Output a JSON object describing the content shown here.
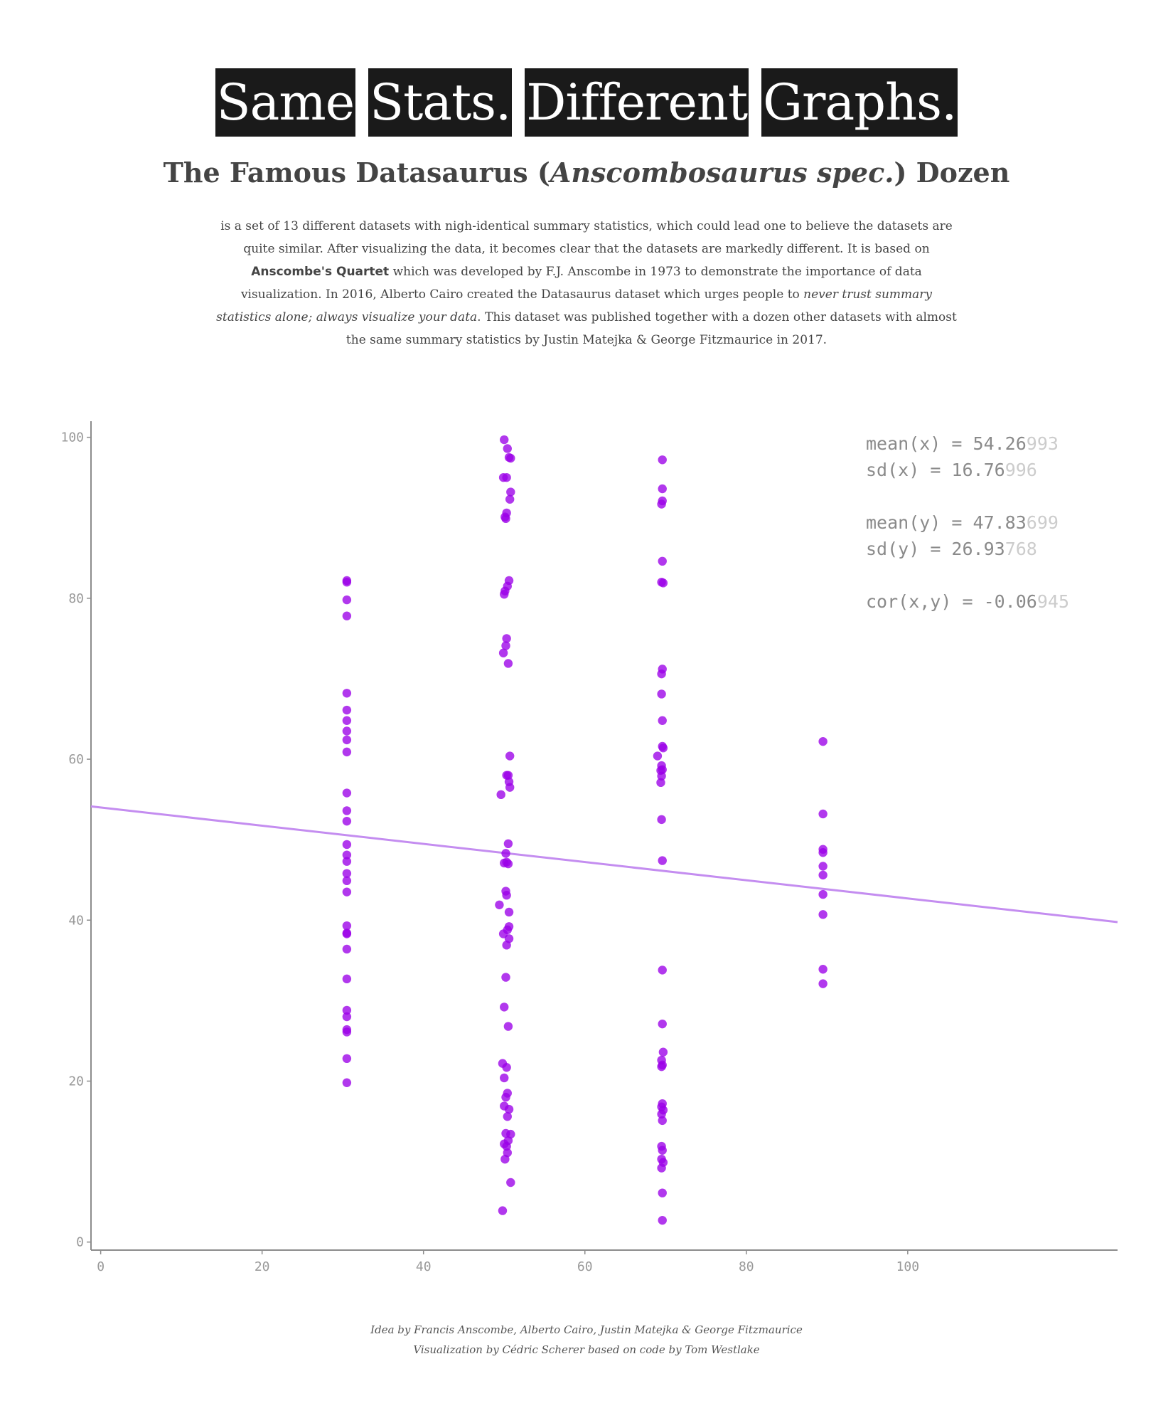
{
  "title": {
    "words": [
      "Same",
      "Stats.",
      "Different",
      "Graphs."
    ]
  },
  "subtitle": {
    "prefix": "The Famous Datasaurus (",
    "emph": "Anscombosaurus spec.",
    "suffix": ") Dozen"
  },
  "description": {
    "p1": "is a set of 13 different datasets with nigh-identical summary statistics, which could lead one to believe the datasets are quite similar. After visualizing the data, it becomes clear that the datasets are markedly different. It is based on ",
    "bold": "Anscombe's Quartet",
    "p2": " which was developed by F.J. Anscombe in 1973 to demonstrate the importance of data visualization. In 2016, Alberto Cairo created the Datasaurus dataset which urges people to ",
    "italic": "never trust summary statistics alone; always visualize your data",
    "p3": ". This dataset was published together with a dozen other datasets with almost the same summary statistics by Justin Matejka & George Fitzmaurice in 2017."
  },
  "stats": [
    {
      "label": "mean(x)  ",
      "eq": " = ",
      "main": "54.26",
      "faint": "993"
    },
    {
      "label": "sd(x)    ",
      "eq": " = ",
      "main": "16.76",
      "faint": "996"
    },
    {
      "label": "mean(y)  ",
      "eq": " = ",
      "main": "47.83",
      "faint": "699"
    },
    {
      "label": "sd(y)    ",
      "eq": " = ",
      "main": "26.93",
      "faint": "768"
    },
    {
      "label": "cor(x,y)",
      "eq": " = ",
      "main": "-0.06",
      "faint": "945"
    }
  ],
  "chart_data": {
    "type": "scatter",
    "xlim": [
      -1.2,
      126
    ],
    "ylim": [
      -1,
      102
    ],
    "xticks": [
      0,
      20,
      40,
      60,
      80,
      100
    ],
    "yticks": [
      0,
      20,
      40,
      60,
      80,
      100
    ],
    "grid": false,
    "point_color": "#9b00e8",
    "line_color": "#c48df0",
    "trend_line": {
      "intercept": 54.0,
      "slope": -0.113
    },
    "points": [
      [
        30.5,
        82.2
      ],
      [
        30.5,
        82.0
      ],
      [
        30.5,
        79.8
      ],
      [
        30.5,
        77.8
      ],
      [
        30.5,
        68.2
      ],
      [
        30.5,
        66.1
      ],
      [
        30.5,
        64.8
      ],
      [
        30.5,
        63.5
      ],
      [
        30.5,
        62.4
      ],
      [
        30.5,
        60.9
      ],
      [
        30.5,
        55.8
      ],
      [
        30.5,
        53.6
      ],
      [
        30.5,
        52.3
      ],
      [
        30.5,
        49.4
      ],
      [
        30.5,
        48.1
      ],
      [
        30.5,
        47.3
      ],
      [
        30.5,
        45.8
      ],
      [
        30.5,
        44.9
      ],
      [
        30.5,
        43.5
      ],
      [
        30.5,
        39.3
      ],
      [
        30.5,
        38.4
      ],
      [
        30.5,
        38.3
      ],
      [
        30.5,
        36.4
      ],
      [
        30.5,
        32.7
      ],
      [
        30.5,
        28.8
      ],
      [
        30.5,
        28.0
      ],
      [
        30.5,
        26.4
      ],
      [
        30.5,
        26.1
      ],
      [
        30.5,
        22.8
      ],
      [
        30.5,
        19.8
      ],
      [
        50.0,
        99.7
      ],
      [
        50.4,
        98.6
      ],
      [
        50.6,
        97.5
      ],
      [
        50.8,
        97.4
      ],
      [
        49.9,
        95.0
      ],
      [
        50.3,
        95.0
      ],
      [
        50.8,
        93.2
      ],
      [
        50.7,
        92.3
      ],
      [
        50.3,
        90.6
      ],
      [
        50.1,
        90.1
      ],
      [
        50.2,
        89.9
      ],
      [
        50.6,
        82.2
      ],
      [
        50.4,
        81.5
      ],
      [
        50.1,
        80.9
      ],
      [
        50.0,
        80.5
      ],
      [
        50.3,
        75.0
      ],
      [
        50.2,
        74.1
      ],
      [
        49.9,
        73.2
      ],
      [
        50.5,
        71.9
      ],
      [
        50.7,
        60.4
      ],
      [
        50.3,
        58.0
      ],
      [
        50.5,
        58.0
      ],
      [
        50.6,
        57.2
      ],
      [
        50.7,
        56.5
      ],
      [
        49.6,
        55.6
      ],
      [
        50.5,
        49.5
      ],
      [
        50.2,
        48.3
      ],
      [
        50.3,
        47.2
      ],
      [
        50.0,
        47.1
      ],
      [
        50.5,
        47.0
      ],
      [
        50.2,
        43.6
      ],
      [
        50.3,
        43.1
      ],
      [
        49.4,
        41.9
      ],
      [
        50.6,
        41.0
      ],
      [
        50.6,
        39.2
      ],
      [
        50.4,
        38.8
      ],
      [
        49.9,
        38.3
      ],
      [
        50.6,
        37.7
      ],
      [
        50.3,
        36.9
      ],
      [
        50.2,
        32.9
      ],
      [
        50.0,
        29.2
      ],
      [
        50.5,
        26.8
      ],
      [
        49.8,
        22.2
      ],
      [
        50.3,
        21.7
      ],
      [
        50.0,
        20.4
      ],
      [
        50.4,
        18.5
      ],
      [
        50.2,
        18.0
      ],
      [
        50.0,
        16.9
      ],
      [
        50.6,
        16.5
      ],
      [
        50.4,
        15.6
      ],
      [
        50.2,
        13.5
      ],
      [
        50.8,
        13.4
      ],
      [
        50.5,
        12.6
      ],
      [
        50.0,
        12.2
      ],
      [
        50.3,
        11.9
      ],
      [
        50.4,
        11.1
      ],
      [
        50.1,
        10.3
      ],
      [
        50.8,
        7.4
      ],
      [
        49.8,
        3.9
      ],
      [
        69.6,
        97.2
      ],
      [
        69.6,
        93.6
      ],
      [
        69.6,
        92.1
      ],
      [
        69.5,
        91.7
      ],
      [
        69.6,
        84.6
      ],
      [
        69.5,
        82.0
      ],
      [
        69.7,
        81.9
      ],
      [
        69.6,
        71.2
      ],
      [
        69.5,
        70.6
      ],
      [
        69.5,
        68.1
      ],
      [
        69.6,
        64.8
      ],
      [
        69.6,
        61.6
      ],
      [
        69.7,
        61.4
      ],
      [
        69.0,
        60.4
      ],
      [
        69.5,
        59.2
      ],
      [
        69.4,
        58.6
      ],
      [
        69.6,
        58.7
      ],
      [
        69.5,
        57.9
      ],
      [
        69.4,
        57.1
      ],
      [
        69.5,
        52.5
      ],
      [
        69.6,
        47.4
      ],
      [
        69.6,
        33.8
      ],
      [
        69.6,
        27.1
      ],
      [
        69.7,
        23.6
      ],
      [
        69.5,
        22.6
      ],
      [
        69.6,
        22.0
      ],
      [
        69.5,
        21.8
      ],
      [
        69.6,
        17.2
      ],
      [
        69.5,
        16.8
      ],
      [
        69.7,
        16.4
      ],
      [
        69.5,
        15.9
      ],
      [
        69.6,
        15.1
      ],
      [
        69.5,
        11.9
      ],
      [
        69.6,
        11.4
      ],
      [
        69.5,
        10.3
      ],
      [
        69.7,
        9.9
      ],
      [
        69.5,
        9.2
      ],
      [
        69.6,
        6.1
      ],
      [
        69.6,
        2.7
      ],
      [
        89.5,
        62.2
      ],
      [
        89.5,
        53.2
      ],
      [
        89.5,
        48.8
      ],
      [
        89.5,
        48.4
      ],
      [
        89.5,
        46.7
      ],
      [
        89.5,
        45.6
      ],
      [
        89.5,
        43.2
      ],
      [
        89.5,
        40.7
      ],
      [
        89.5,
        33.9
      ],
      [
        89.5,
        32.1
      ]
    ]
  },
  "caption": {
    "line1": "Idea by Francis Anscombe, Alberto Cairo, Justin Matejka & George Fitzmaurice",
    "line2": "Visualization by Cédric Scherer based on code by Tom Westlake"
  }
}
